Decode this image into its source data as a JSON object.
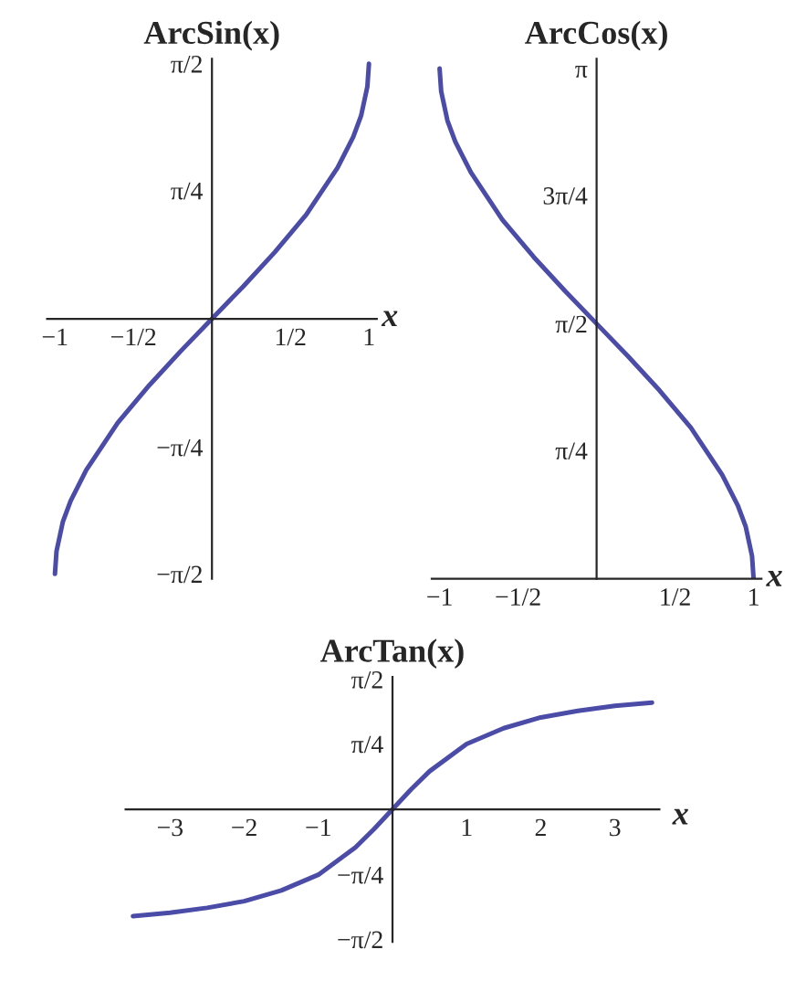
{
  "chart_data": [
    {
      "type": "line",
      "title": "ArcSin(x)",
      "xlabel": "x",
      "grid": false,
      "legend": false,
      "series": [
        {
          "color": "#4b4ba8",
          "x": [
            -1,
            -0.99,
            -0.95,
            -0.9,
            -0.8,
            -0.6,
            -0.4,
            -0.2,
            0,
            0.2,
            0.4,
            0.6,
            0.8,
            0.9,
            0.95,
            0.99,
            1
          ],
          "values": [
            -1.57,
            -1.43,
            -1.25,
            -1.12,
            -0.93,
            -0.64,
            -0.41,
            -0.2,
            0,
            0.2,
            0.41,
            0.64,
            0.93,
            1.12,
            1.25,
            1.43,
            1.57
          ]
        }
      ],
      "xlim": [
        -1.05,
        1.05
      ],
      "ylim": [
        -1.6,
        1.6
      ],
      "xticks": [
        {
          "value": -1,
          "label": "−1"
        },
        {
          "value": -0.5,
          "label": "−1/2"
        },
        {
          "value": 0.5,
          "label": "1/2"
        },
        1
      ],
      "yticks": [
        {
          "value": -1.57,
          "label": "−π/2"
        },
        {
          "value": -0.79,
          "label": "−π/4"
        },
        {
          "value": 0.79,
          "label": "π/4"
        },
        {
          "value": 1.57,
          "label": "π/2"
        }
      ]
    },
    {
      "type": "line",
      "title": "ArcCos(x)",
      "xlabel": "x",
      "grid": false,
      "legend": false,
      "series": [
        {
          "color": "#4b4ba8",
          "x": [
            -1,
            -0.99,
            -0.95,
            -0.9,
            -0.8,
            -0.6,
            -0.4,
            -0.2,
            0,
            0.2,
            0.4,
            0.6,
            0.8,
            0.9,
            0.95,
            0.99,
            1
          ],
          "values": [
            3.14,
            3.0,
            2.82,
            2.69,
            2.5,
            2.21,
            1.98,
            1.77,
            1.57,
            1.37,
            1.16,
            0.93,
            0.64,
            0.45,
            0.32,
            0.14,
            0
          ]
        }
      ],
      "xlim": [
        -1.05,
        1.05
      ],
      "ylim": [
        0,
        3.2
      ],
      "xticks": [
        {
          "value": -1,
          "label": "−1"
        },
        {
          "value": -0.5,
          "label": "−1/2"
        },
        {
          "value": 0.5,
          "label": "1/2"
        },
        1
      ],
      "yticks": [
        {
          "value": 0.79,
          "label": "π/4"
        },
        {
          "value": 1.57,
          "label": "π/2"
        },
        {
          "value": 2.36,
          "label": "3π/4"
        },
        {
          "value": 3.14,
          "label": "π"
        }
      ]
    },
    {
      "type": "line",
      "title": "ArcTan(x)",
      "xlabel": "x",
      "grid": false,
      "legend": false,
      "series": [
        {
          "color": "#4b4ba8",
          "x": [
            -3.5,
            -3,
            -2.5,
            -2,
            -1.5,
            -1,
            -0.5,
            -0.25,
            0,
            0.25,
            0.5,
            1,
            1.5,
            2,
            2.5,
            3,
            3.5
          ],
          "values": [
            -1.29,
            -1.25,
            -1.19,
            -1.11,
            -0.98,
            -0.79,
            -0.46,
            -0.24,
            0,
            0.24,
            0.46,
            0.79,
            0.98,
            1.11,
            1.19,
            1.25,
            1.29
          ]
        }
      ],
      "xlim": [
        -3.6,
        3.6
      ],
      "ylim": [
        -1.6,
        1.6
      ],
      "xticks": [
        {
          "value": -3,
          "label": "−3"
        },
        {
          "value": -2,
          "label": "−2"
        },
        {
          "value": -1,
          "label": "−1"
        },
        1,
        2,
        3
      ],
      "yticks": [
        {
          "value": -1.57,
          "label": "−π/2"
        },
        {
          "value": -0.79,
          "label": "−π/4"
        },
        {
          "value": 0.79,
          "label": "π/4"
        },
        {
          "value": 1.57,
          "label": "π/2"
        }
      ]
    }
  ]
}
